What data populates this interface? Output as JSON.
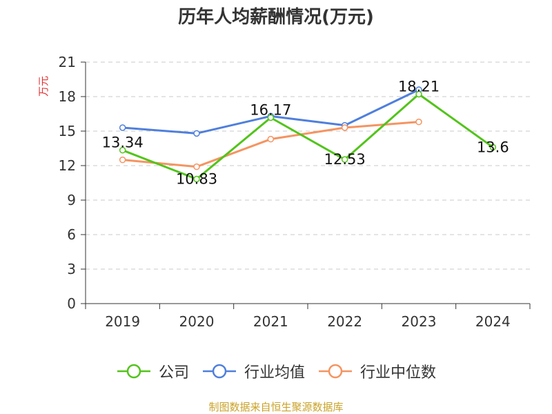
{
  "chart_data": {
    "type": "line",
    "title": "历年人均薪酬情况(万元)",
    "ylabel": "万元",
    "xlabel": "",
    "categories": [
      "2019",
      "2020",
      "2021",
      "2022",
      "2023",
      "2024"
    ],
    "ylim": [
      0,
      21
    ],
    "yticks": [
      "0",
      "3",
      "6",
      "9",
      "12",
      "15",
      "18",
      "21"
    ],
    "grid": true,
    "legend_position": "bottom",
    "series": [
      {
        "name": "公司",
        "color": "#52c41a",
        "values": [
          13.34,
          10.83,
          16.17,
          12.53,
          18.21,
          13.6
        ],
        "labels": [
          "13.34",
          "10.83",
          "16.17",
          "12.53",
          "18.21",
          "13.6"
        ]
      },
      {
        "name": "行业均值",
        "color": "#4f7fdc",
        "values": [
          15.3,
          14.8,
          16.3,
          15.5,
          18.6,
          null
        ]
      },
      {
        "name": "行业中位数",
        "color": "#f59461",
        "values": [
          12.5,
          11.9,
          14.3,
          15.3,
          15.8,
          null
        ]
      }
    ]
  },
  "source": "制图数据来自恒生聚源数据库"
}
